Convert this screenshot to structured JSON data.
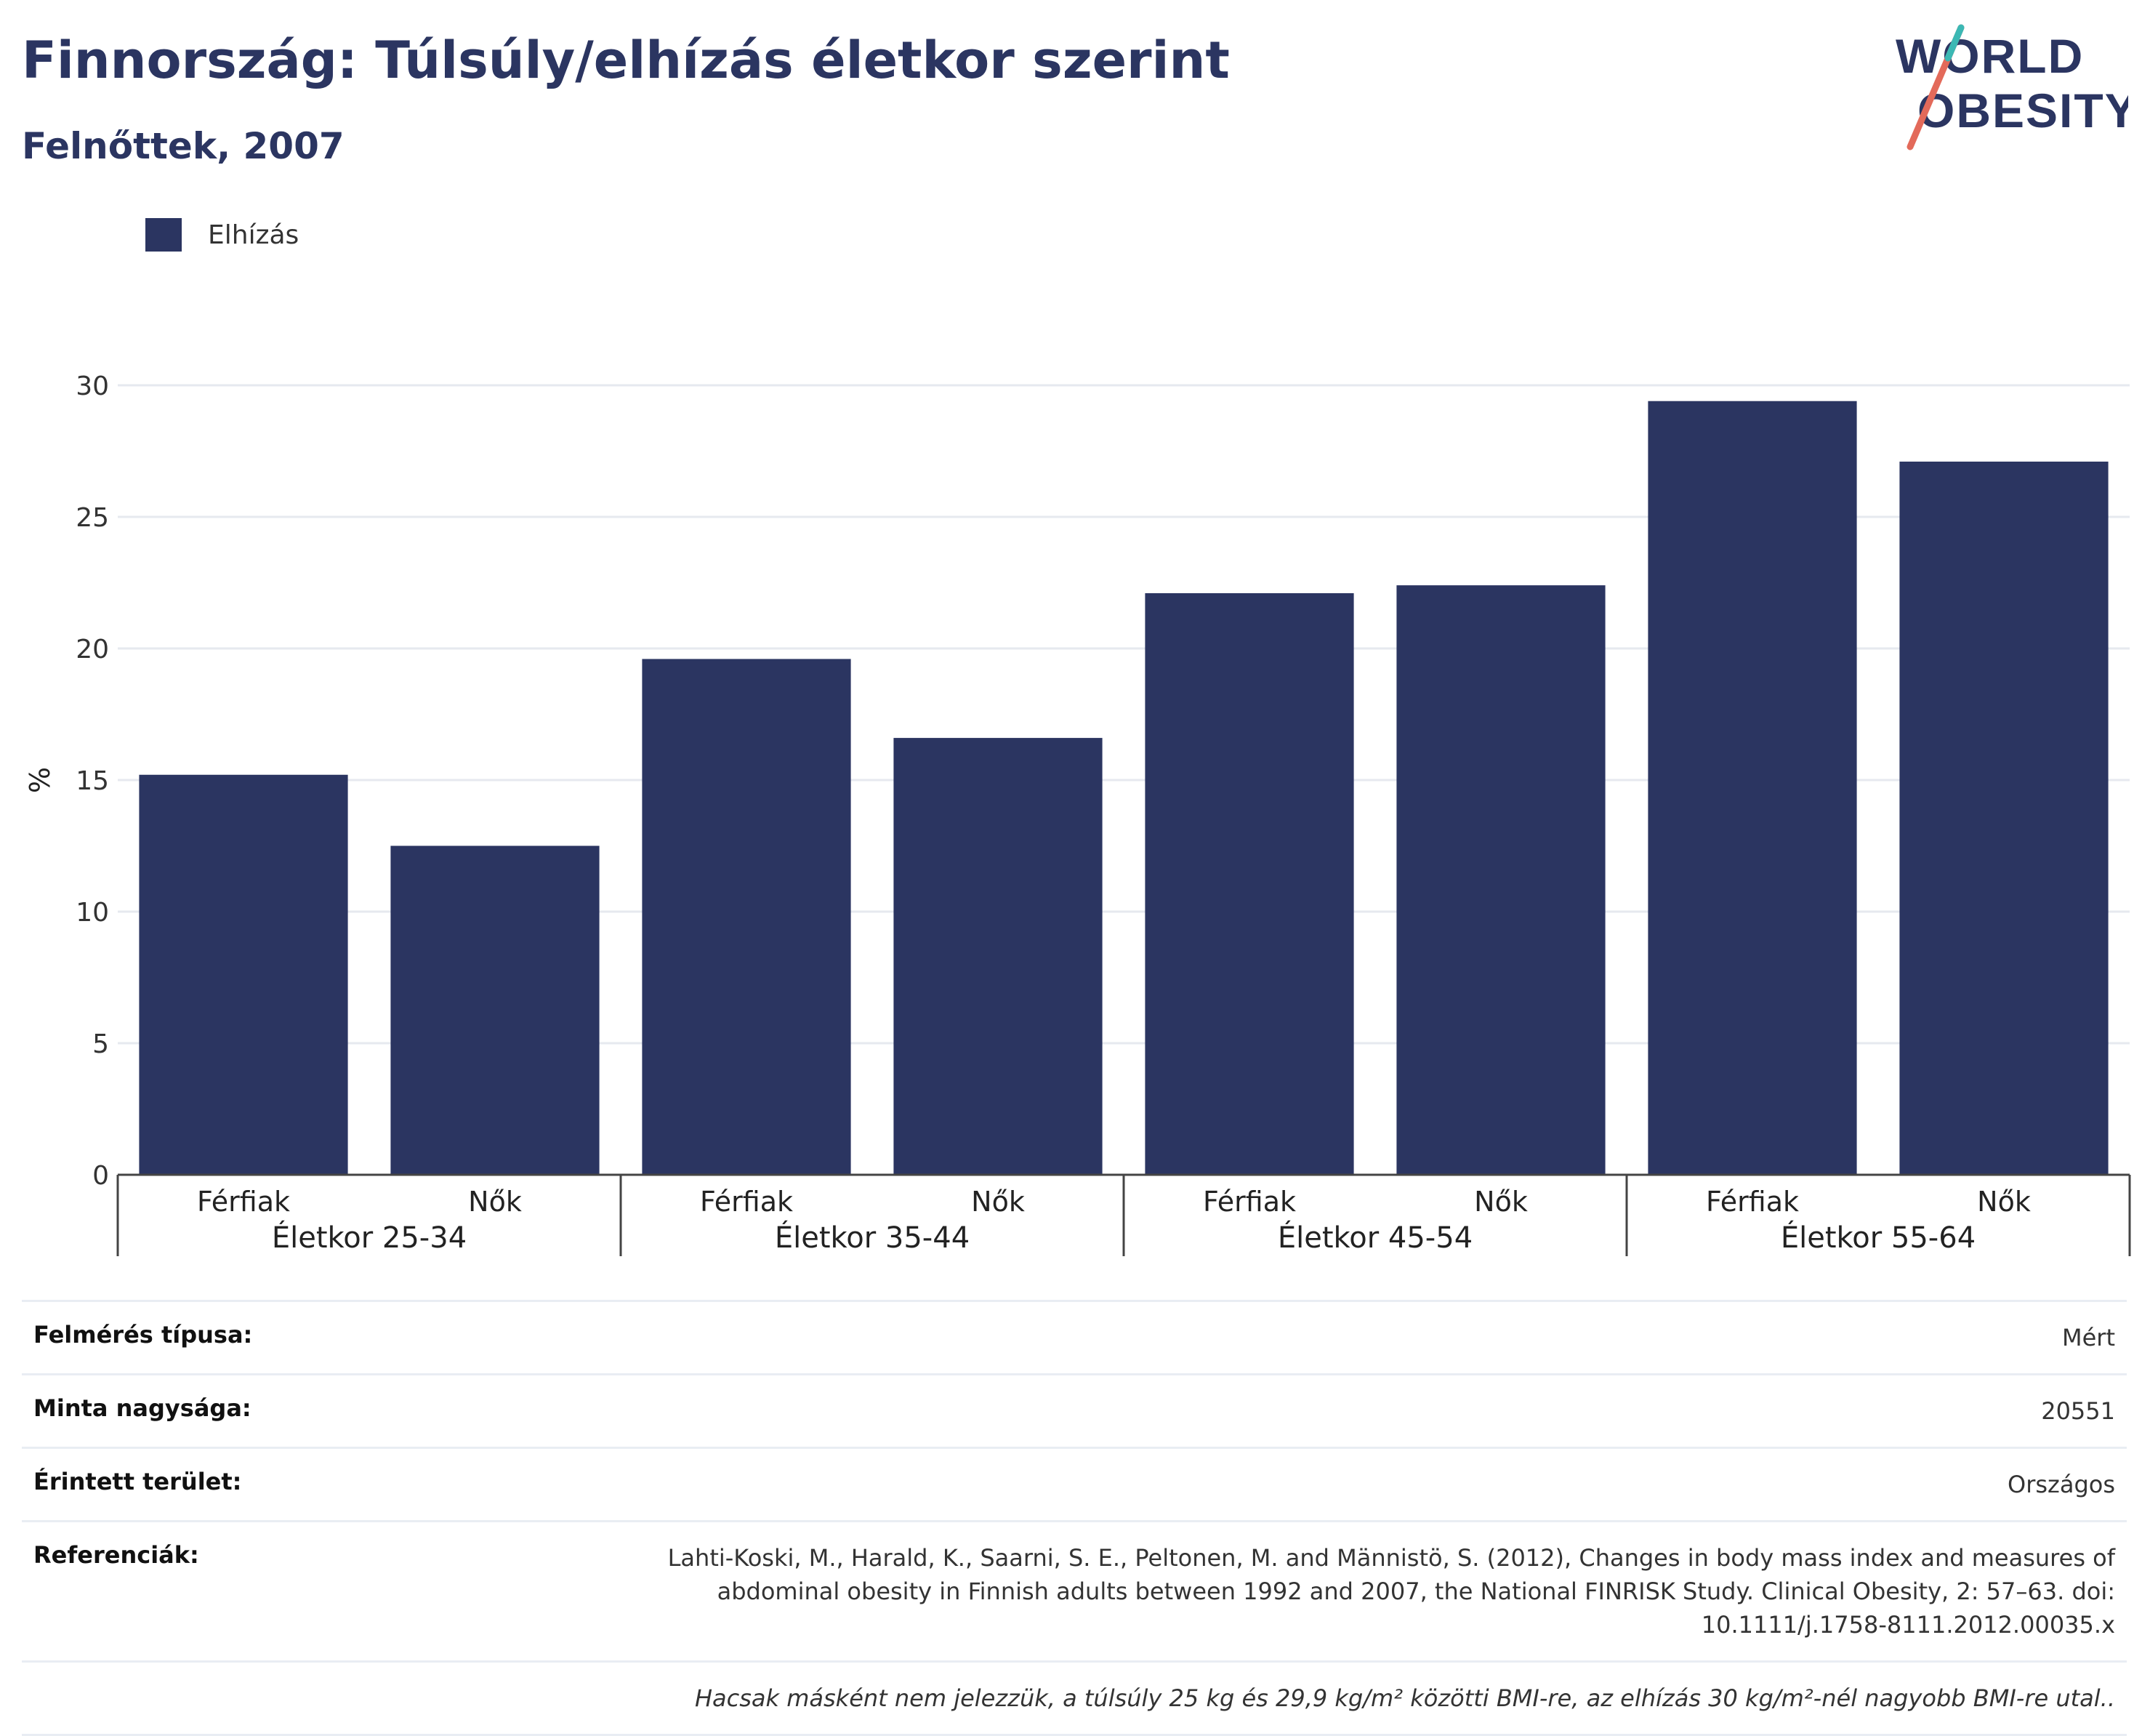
{
  "header": {
    "title": "Finnország: Túlsúly/elhízás életkor szerint",
    "subtitle": "Felnőttek, 2007"
  },
  "logo": {
    "line1": "WORLD",
    "line2": "OBESITY"
  },
  "legend": {
    "label": "Elhízás",
    "color": "#2b3561"
  },
  "chart_data": {
    "type": "bar",
    "ylabel": "%",
    "ylim": [
      0,
      30
    ],
    "yticks": [
      0,
      5,
      10,
      15,
      20,
      25,
      30
    ],
    "grid": true,
    "groups": [
      "Életkor 25-34",
      "Életkor 35-44",
      "Életkor 45-54",
      "Életkor 55-64"
    ],
    "subcategories": [
      "Férfiak",
      "Nők"
    ],
    "series": [
      {
        "name": "Elhízás",
        "color": "#2b3561",
        "values": [
          15.2,
          12.5,
          19.6,
          16.6,
          22.1,
          22.4,
          29.4,
          27.1
        ]
      }
    ]
  },
  "info": {
    "rows": [
      {
        "label": "Felmérés típusa:",
        "value": "Mért"
      },
      {
        "label": "Minta nagysága:",
        "value": "20551"
      },
      {
        "label": "Érintett terület:",
        "value": "Országos"
      },
      {
        "label": "Referenciák:",
        "value": "Lahti-Koski, M., Harald, K., Saarni, S. E., Peltonen, M. and Männistö, S. (2012), Changes in body mass index and measures of abdominal obesity in Finnish adults between 1992 and 2007, the National FINRISK Study. Clinical Obesity, 2: 57–63. doi: 10.1111/j.1758-8111.2012.00035.x"
      }
    ],
    "note": "Hacsak másként nem jelezzük, a túlsúly 25 kg és 29,9 kg/m² közötti BMI-re, az elhízás 30 kg/m²-nél nagyobb BMI-re utal.."
  }
}
